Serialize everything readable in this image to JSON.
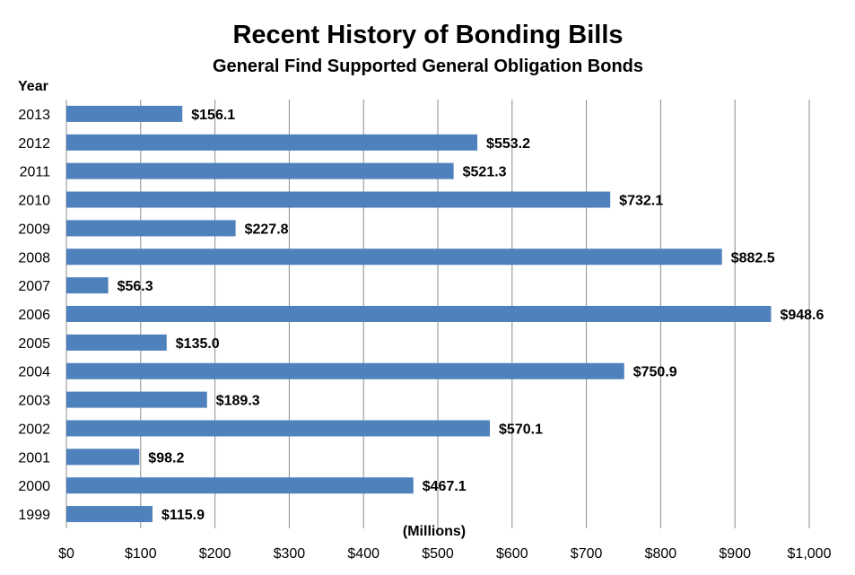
{
  "chart_data": {
    "type": "bar",
    "orientation": "horizontal",
    "title": "Recent History of Bonding Bills",
    "subtitle": "General Find Supported General Obligation Bonds",
    "ylabel": "Year",
    "xlabel": "(Millions)",
    "categories": [
      "2013",
      "2012",
      "2011",
      "2010",
      "2009",
      "2008",
      "2007",
      "2006",
      "2005",
      "2004",
      "2003",
      "2002",
      "2001",
      "2000",
      "1999"
    ],
    "values": [
      156.1,
      553.2,
      521.3,
      732.1,
      227.8,
      882.5,
      56.3,
      948.6,
      135.0,
      750.9,
      189.3,
      570.1,
      98.2,
      467.1,
      115.9
    ],
    "data_labels": [
      "$156.1",
      "$553.2",
      "$521.3",
      "$732.1",
      "$227.8",
      "$882.5",
      "$56.3",
      "$948.6",
      "$135.0",
      "$750.9",
      "$189.3",
      "$570.1",
      "$98.2",
      "$467.1",
      "$115.9"
    ],
    "xlim": [
      0,
      1000
    ],
    "x_ticks": [
      0,
      100,
      200,
      300,
      400,
      500,
      600,
      700,
      800,
      900,
      1000
    ],
    "x_tick_labels": [
      "$0",
      "$100",
      "$200",
      "$300",
      "$400",
      "$500",
      "$600",
      "$700",
      "$800",
      "$900",
      "$1,000"
    ],
    "grid": true,
    "bar_color": "#4f81bd"
  }
}
